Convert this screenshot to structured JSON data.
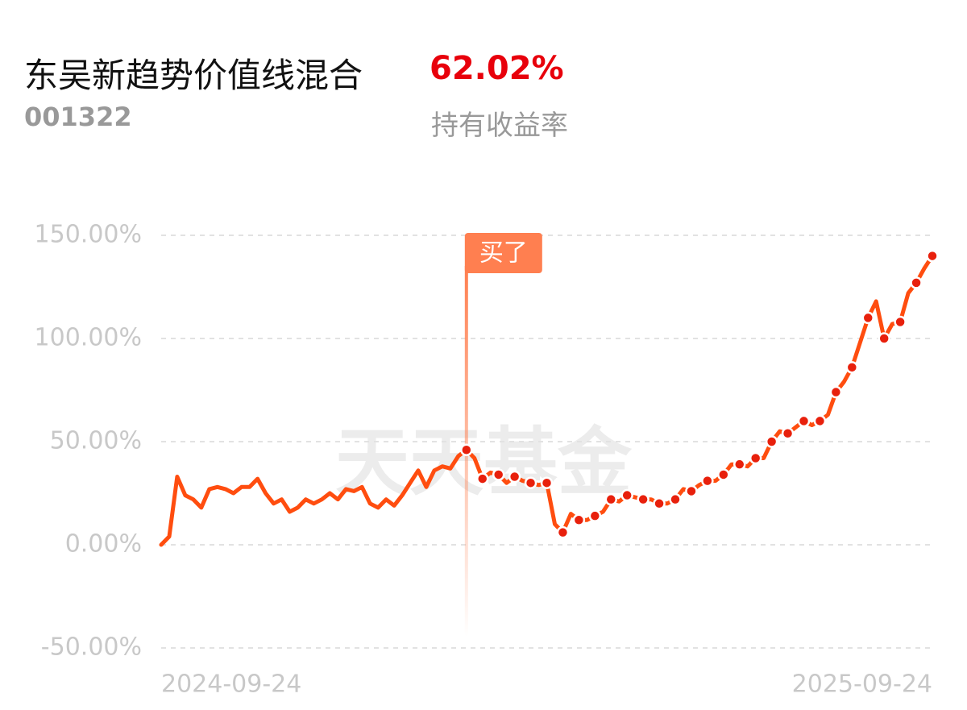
{
  "header": {
    "fund_name": "东吴新趋势价值线混合",
    "fund_code": "001322",
    "return": "62.02%",
    "return_label": "持有收益率"
  },
  "chart_data": {
    "type": "line",
    "watermark": "天天基金",
    "buy_label": "买了",
    "buy_index": 38,
    "color": "#ff4d0f",
    "grid": true,
    "ylim": [
      -50,
      150
    ],
    "yticks": [
      {
        "value": -50,
        "label": "-50.00%"
      },
      {
        "value": 0,
        "label": "0.00%"
      },
      {
        "value": 50,
        "label": "50.00%"
      },
      {
        "value": 100,
        "label": "100.00%"
      },
      {
        "value": 150,
        "label": "150.00%"
      }
    ],
    "categories": [
      "2024-09-24",
      null,
      null,
      null,
      null,
      null,
      null,
      null,
      null,
      null,
      null,
      null,
      null,
      null,
      null,
      null,
      null,
      null,
      null,
      null,
      null,
      null,
      null,
      null,
      null,
      null,
      null,
      null,
      null,
      null,
      null,
      null,
      null,
      null,
      null,
      null,
      null,
      null,
      null,
      null,
      null,
      null,
      null,
      null,
      null,
      null,
      null,
      null,
      null,
      null,
      null,
      null,
      null,
      null,
      null,
      null,
      null,
      null,
      null,
      null,
      null,
      null,
      null,
      null,
      null,
      null,
      null,
      null,
      null,
      null,
      null,
      null,
      null,
      null,
      null,
      null,
      null,
      null,
      null,
      null,
      null,
      null,
      null,
      null,
      null,
      null,
      null,
      null,
      null,
      null,
      null,
      null,
      null,
      null,
      null,
      null,
      "2025-09-24"
    ],
    "values": [
      0,
      4,
      33,
      24,
      22,
      18,
      27,
      28,
      27,
      25,
      28,
      28,
      32,
      25,
      20,
      22,
      16,
      18,
      22,
      20,
      22,
      25,
      22,
      27,
      26,
      28,
      20,
      18,
      22,
      19,
      24,
      30,
      36,
      28,
      36,
      38,
      37,
      43,
      46,
      42,
      32,
      35,
      34,
      30,
      33,
      31,
      30,
      29,
      30,
      10,
      6,
      15,
      12,
      12,
      14,
      16,
      22,
      21,
      24,
      23,
      22,
      22,
      20,
      20,
      22,
      27,
      26,
      29,
      31,
      31,
      34,
      39,
      39,
      38,
      42,
      42,
      50,
      55,
      54,
      57,
      60,
      58,
      60,
      63,
      74,
      79,
      86,
      98,
      110,
      118,
      100,
      107,
      108,
      122,
      127,
      134,
      140
    ]
  }
}
